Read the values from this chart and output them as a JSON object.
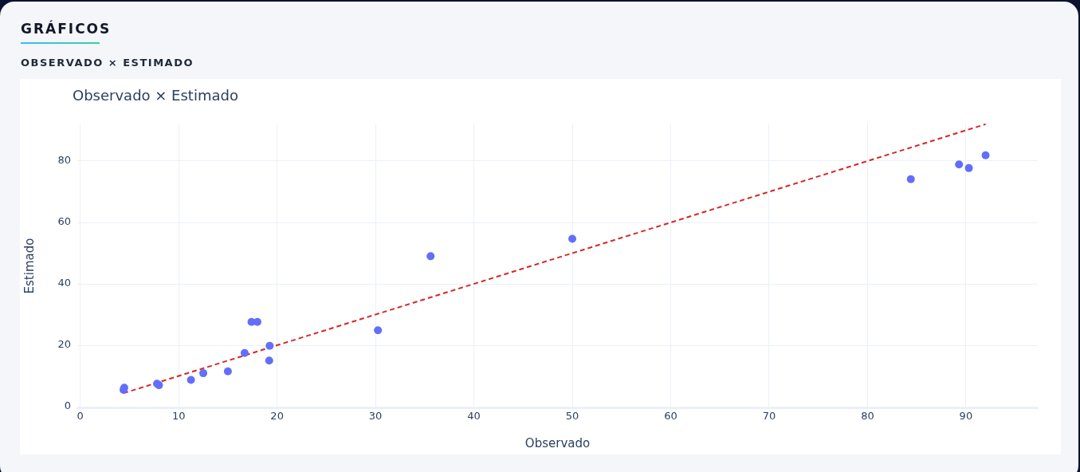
{
  "chart_data": {
    "type": "scatter",
    "title": "Observado × Estimado",
    "xlabel": "Observado",
    "ylabel": "Estimado",
    "annotations": [
      "GRÁFICOS",
      "OBSERVADO × ESTIMADO"
    ],
    "xlim": [
      -0.3,
      97.3
    ],
    "ylim": [
      -0.5,
      92.2
    ],
    "xticks": [
      0,
      10,
      20,
      30,
      40,
      50,
      60,
      70,
      80,
      90
    ],
    "yticks": [
      0,
      20,
      40,
      60,
      80
    ],
    "grid": true,
    "legend": false,
    "marker": "circle",
    "series": [
      {
        "type": "scatter",
        "color": "#636efa",
        "x": [
          4.47,
          4.4,
          7.8,
          8.0,
          11.25,
          12.5,
          15.0,
          16.7,
          17.4,
          18.0,
          19.25,
          19.2,
          30.25,
          35.6,
          50.0,
          84.4,
          89.3,
          90.3,
          92.0
        ],
        "values": [
          6.2,
          5.5,
          7.5,
          7.0,
          8.7,
          10.9,
          11.5,
          17.5,
          27.6,
          27.6,
          19.8,
          15.0,
          24.9,
          49.0,
          54.7,
          74.1,
          78.9,
          77.7,
          81.9
        ]
      },
      {
        "type": "line",
        "color": "#d62728",
        "line_style": "dashed",
        "marker": "none",
        "x": [
          4.4,
          92.0
        ],
        "values": [
          4.4,
          92.0
        ]
      }
    ]
  }
}
